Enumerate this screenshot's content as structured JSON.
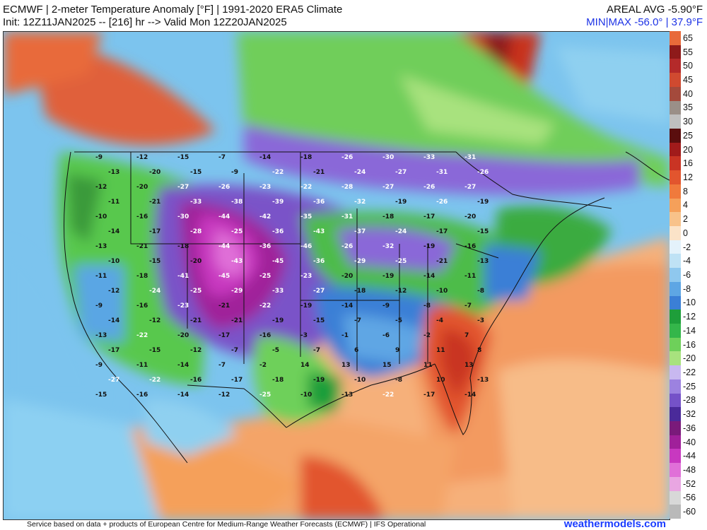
{
  "header": {
    "title_line1": "ECMWF | 2-meter Temperature Anomaly [°F] | 1991-2020 ERA5 Climate",
    "title_line2": "Init: 12Z11JAN2025 -- [216] hr --> Valid Mon 12Z20JAN2025",
    "areal_avg": "AREAL AVG -5.90°F",
    "min_max": "MIN|MAX -56.0° | 37.9°F"
  },
  "colorbar": {
    "labels": [
      "65",
      "55",
      "50",
      "45",
      "40",
      "35",
      "30",
      "25",
      "20",
      "16",
      "12",
      "8",
      "4",
      "2",
      "0",
      "-2",
      "-4",
      "-6",
      "-8",
      "-10",
      "-12",
      "-14",
      "-16",
      "-20",
      "-22",
      "-25",
      "-28",
      "-32",
      "-36",
      "-40",
      "-44",
      "-48",
      "-52",
      "-56",
      "-60"
    ],
    "colors": [
      "#e86a3a",
      "#8e1a1a",
      "#b42a2a",
      "#d04a30",
      "#a44a3c",
      "#9a8f88",
      "#bfbfbf",
      "#5a0e0e",
      "#a11b1b",
      "#c93424",
      "#e2552e",
      "#f07a3c",
      "#f5a05a",
      "#f8c28a",
      "#fbe3c8",
      "#e4f2fb",
      "#bfe2f5",
      "#8fc8ee",
      "#5ea6e4",
      "#3b7fd6",
      "#1e9e3a",
      "#34b64a",
      "#6ed05a",
      "#a8e27e",
      "#c8b8f0",
      "#9c82e0",
      "#7552c8",
      "#4a2a9a",
      "#7a1a7a",
      "#a0209a",
      "#c838c0",
      "#e070d8",
      "#e9a6e2",
      "#d8d8d8",
      "#b9b9b9"
    ]
  },
  "map": {
    "anomaly_labels": [
      {
        "v": "-9"
      },
      {
        "v": "-12"
      },
      {
        "v": "-15"
      },
      {
        "v": "-7"
      },
      {
        "v": "-14"
      },
      {
        "v": "-18"
      },
      {
        "v": "-26"
      },
      {
        "v": "-30"
      },
      {
        "v": "-33"
      },
      {
        "v": "-31"
      },
      {
        "v": "-13"
      },
      {
        "v": "-20"
      },
      {
        "v": "-15"
      },
      {
        "v": "-9"
      },
      {
        "v": "-22"
      },
      {
        "v": "-21"
      },
      {
        "v": "-24"
      },
      {
        "v": "-27"
      },
      {
        "v": "-31"
      },
      {
        "v": "-26"
      },
      {
        "v": "-12"
      },
      {
        "v": "-20"
      },
      {
        "v": "-27"
      },
      {
        "v": "-26"
      },
      {
        "v": "-23"
      },
      {
        "v": "-22"
      },
      {
        "v": "-28"
      },
      {
        "v": "-27"
      },
      {
        "v": "-26"
      },
      {
        "v": "-27"
      },
      {
        "v": "-11"
      },
      {
        "v": "-21"
      },
      {
        "v": "-33"
      },
      {
        "v": "-38"
      },
      {
        "v": "-39"
      },
      {
        "v": "-36"
      },
      {
        "v": "-32"
      },
      {
        "v": "-19"
      },
      {
        "v": "-26"
      },
      {
        "v": "-19"
      },
      {
        "v": "-10"
      },
      {
        "v": "-16"
      },
      {
        "v": "-30"
      },
      {
        "v": "-44"
      },
      {
        "v": "-42"
      },
      {
        "v": "-35"
      },
      {
        "v": "-31"
      },
      {
        "v": "-18"
      },
      {
        "v": "-17"
      },
      {
        "v": "-20"
      },
      {
        "v": "-14"
      },
      {
        "v": "-17"
      },
      {
        "v": "-28"
      },
      {
        "v": "-25"
      },
      {
        "v": "-36"
      },
      {
        "v": "-43"
      },
      {
        "v": "-37"
      },
      {
        "v": "-24"
      },
      {
        "v": "-17"
      },
      {
        "v": "-15"
      },
      {
        "v": "-13"
      },
      {
        "v": "-21"
      },
      {
        "v": "-18"
      },
      {
        "v": "-44"
      },
      {
        "v": "-36"
      },
      {
        "v": "-46"
      },
      {
        "v": "-26"
      },
      {
        "v": "-32"
      },
      {
        "v": "-19"
      },
      {
        "v": "-16"
      },
      {
        "v": "-10"
      },
      {
        "v": "-15"
      },
      {
        "v": "-20"
      },
      {
        "v": "-43"
      },
      {
        "v": "-45"
      },
      {
        "v": "-36"
      },
      {
        "v": "-29"
      },
      {
        "v": "-25"
      },
      {
        "v": "-21"
      },
      {
        "v": "-13"
      },
      {
        "v": "-11"
      },
      {
        "v": "-18"
      },
      {
        "v": "-41"
      },
      {
        "v": "-45"
      },
      {
        "v": "-25"
      },
      {
        "v": "-23"
      },
      {
        "v": "-20"
      },
      {
        "v": "-19"
      },
      {
        "v": "-14"
      },
      {
        "v": "-11"
      },
      {
        "v": "-12"
      },
      {
        "v": "-24"
      },
      {
        "v": "-25"
      },
      {
        "v": "-29"
      },
      {
        "v": "-33"
      },
      {
        "v": "-27"
      },
      {
        "v": "-18"
      },
      {
        "v": "-12"
      },
      {
        "v": "-10"
      },
      {
        "v": "-8"
      },
      {
        "v": "-9"
      },
      {
        "v": "-16"
      },
      {
        "v": "-23"
      },
      {
        "v": "-21"
      },
      {
        "v": "-22"
      },
      {
        "v": "-19"
      },
      {
        "v": "-14"
      },
      {
        "v": "-9"
      },
      {
        "v": "-8"
      },
      {
        "v": "-7"
      },
      {
        "v": "-14"
      },
      {
        "v": "-12"
      },
      {
        "v": "-21"
      },
      {
        "v": "-21"
      },
      {
        "v": "-19"
      },
      {
        "v": "-15"
      },
      {
        "v": "-7"
      },
      {
        "v": "-5"
      },
      {
        "v": "-4"
      },
      {
        "v": "-3"
      },
      {
        "v": "-13"
      },
      {
        "v": "-22"
      },
      {
        "v": "-20"
      },
      {
        "v": "-17"
      },
      {
        "v": "-16"
      },
      {
        "v": "-3"
      },
      {
        "v": "-1"
      },
      {
        "v": "-6"
      },
      {
        "v": "-2"
      },
      {
        "v": "7"
      },
      {
        "v": "-17"
      },
      {
        "v": "-15"
      },
      {
        "v": "-12"
      },
      {
        "v": "-7"
      },
      {
        "v": "-5"
      },
      {
        "v": "-7"
      },
      {
        "v": "6"
      },
      {
        "v": "9"
      },
      {
        "v": "11"
      },
      {
        "v": "8"
      },
      {
        "v": "-9"
      },
      {
        "v": "-11"
      },
      {
        "v": "-14"
      },
      {
        "v": "-7"
      },
      {
        "v": "-2"
      },
      {
        "v": "14"
      },
      {
        "v": "13"
      },
      {
        "v": "15"
      },
      {
        "v": "11"
      },
      {
        "v": "13"
      },
      {
        "v": "-27"
      },
      {
        "v": "-22"
      },
      {
        "v": "-16"
      },
      {
        "v": "-17"
      },
      {
        "v": "-18"
      },
      {
        "v": "-19"
      },
      {
        "v": "-10"
      },
      {
        "v": "-8"
      },
      {
        "v": "10"
      },
      {
        "v": "-13"
      },
      {
        "v": "-15"
      },
      {
        "v": "-16"
      },
      {
        "v": "-14"
      },
      {
        "v": "-12"
      },
      {
        "v": "-25"
      },
      {
        "v": "-10"
      },
      {
        "v": "-13"
      },
      {
        "v": "-22"
      },
      {
        "v": "-17"
      },
      {
        "v": "-14"
      }
    ]
  }
}
